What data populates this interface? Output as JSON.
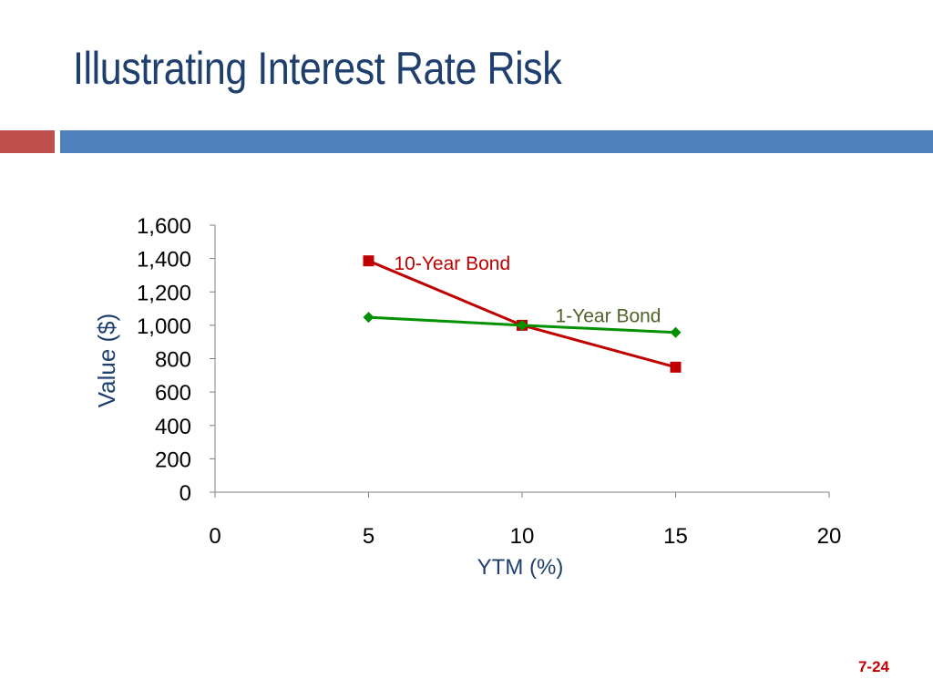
{
  "slide": {
    "title": "Illustrating Interest Rate Risk",
    "page_number": "7-24"
  },
  "colors": {
    "title": "#1f3f6e",
    "accent_red": "#c0504d",
    "accent_blue": "#4f81bd",
    "series_10yr": "#c00000",
    "series_1yr": "#009000",
    "label_1yr": "#4f6228",
    "page_number": "#c00000"
  },
  "chart_data": {
    "type": "scatter",
    "title": "",
    "xlabel": "YTM (%)",
    "ylabel": "Value ($)",
    "xlim": [
      0,
      20
    ],
    "ylim": [
      0,
      1600
    ],
    "xticks": [
      "0",
      "5",
      "10",
      "15",
      "20"
    ],
    "yticks": [
      "0",
      "200",
      "400",
      "600",
      "800",
      "1,000",
      "1,200",
      "1,400",
      "1,600"
    ],
    "grid": false,
    "series": [
      {
        "name": "10-Year Bond",
        "marker": "square",
        "x": [
          5,
          10,
          15
        ],
        "y": [
          1386,
          1000,
          749
        ]
      },
      {
        "name": "1-Year Bond",
        "marker": "diamond",
        "x": [
          5,
          10,
          15
        ],
        "y": [
          1048,
          1000,
          957
        ]
      }
    ]
  }
}
